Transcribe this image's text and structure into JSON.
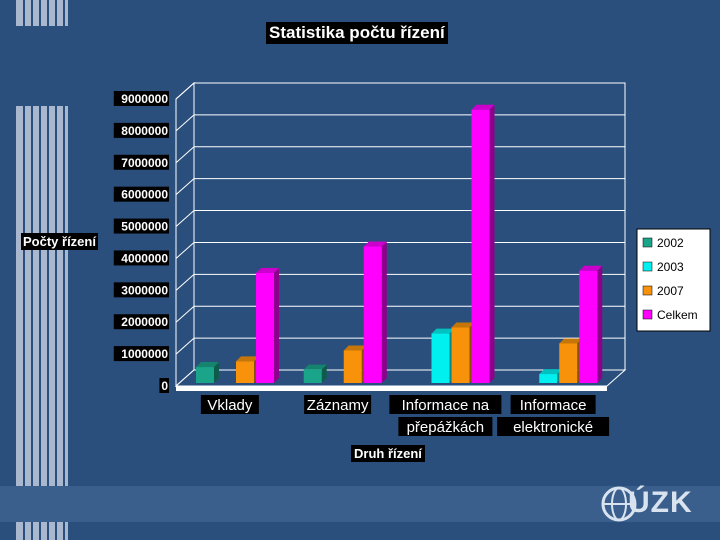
{
  "colors": {
    "background": "#2b4f7c",
    "stripe": "#a9b8cf",
    "bottom_band": "#3b5f8c",
    "grid": "#ffffff",
    "floor": "#2b4f7c"
  },
  "logo": {
    "text": "ÚZK",
    "icon": "globe-icon"
  },
  "chart_data": {
    "type": "bar",
    "bar_style": "3d",
    "title": "Statistika počtu řízení",
    "xlabel": "Druh řízení",
    "ylabel": "Počty řízení",
    "ylim": [
      0,
      9000000
    ],
    "yticks": [
      "0",
      "1000000",
      "2000000",
      "3000000",
      "4000000",
      "5000000",
      "6000000",
      "7000000",
      "8000000",
      "9000000"
    ],
    "grid": true,
    "legend_position": "right",
    "categories": [
      [
        "Vklady"
      ],
      [
        "Záznamy"
      ],
      [
        "Informace na",
        "přepážkách"
      ],
      [
        "Informace",
        "elektronické"
      ]
    ],
    "series": [
      {
        "name": "2002",
        "color": "#1aa58a",
        "values": [
          500000,
          420000,
          null,
          null
        ]
      },
      {
        "name": "2003",
        "color": "#00f0f0",
        "values": [
          null,
          null,
          1550000,
          280000
        ]
      },
      {
        "name": "2007",
        "color": "#f7920a",
        "values": [
          680000,
          1020000,
          1740000,
          1240000
        ]
      },
      {
        "name": "Celkem",
        "color": "#ff00ff",
        "values": [
          3450000,
          4280000,
          8570000,
          3520000
        ]
      }
    ]
  }
}
